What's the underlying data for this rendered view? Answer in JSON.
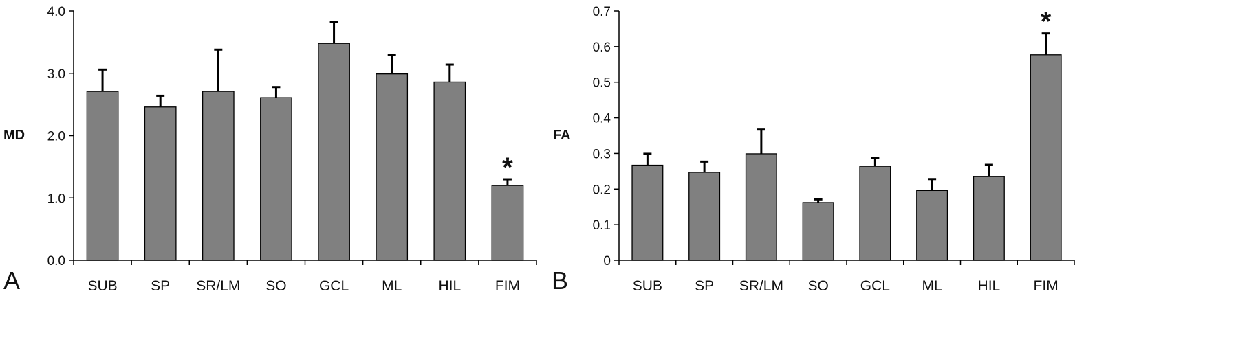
{
  "chart_data": [
    {
      "type": "bar",
      "panel_label": "A",
      "ylabel": "MD",
      "categories": [
        "SUB",
        "SP",
        "SR/LM",
        "SO",
        "GCL",
        "ML",
        "HIL",
        "FIM"
      ],
      "values": [
        2.71,
        2.46,
        2.71,
        2.61,
        3.48,
        2.99,
        2.86,
        1.2
      ],
      "error_upper": [
        0.35,
        0.18,
        0.67,
        0.17,
        0.34,
        0.3,
        0.28,
        0.1
      ],
      "ylim": [
        0,
        4.0
      ],
      "yticks": [
        "0.0",
        "1.0",
        "2.0",
        "3.0",
        "4.0"
      ],
      "significance": [
        {
          "category": "FIM",
          "marker": "*"
        }
      ],
      "bar_color": "#808080",
      "grid": false
    },
    {
      "type": "bar",
      "panel_label": "B",
      "ylabel": "FA",
      "categories": [
        "SUB",
        "SP",
        "SR/LM",
        "SO",
        "GCL",
        "ML",
        "HIL",
        "FIM"
      ],
      "values": [
        0.267,
        0.247,
        0.299,
        0.162,
        0.264,
        0.196,
        0.235,
        0.577
      ],
      "error_upper": [
        0.032,
        0.03,
        0.068,
        0.009,
        0.023,
        0.032,
        0.033,
        0.06
      ],
      "ylim": [
        0,
        0.7
      ],
      "yticks": [
        "0",
        "0.1",
        "0.2",
        "0.3",
        "0.4",
        "0.5",
        "0.6",
        "0.7"
      ],
      "significance": [
        {
          "category": "FIM",
          "marker": "*"
        }
      ],
      "bar_color": "#808080",
      "grid": false
    }
  ]
}
